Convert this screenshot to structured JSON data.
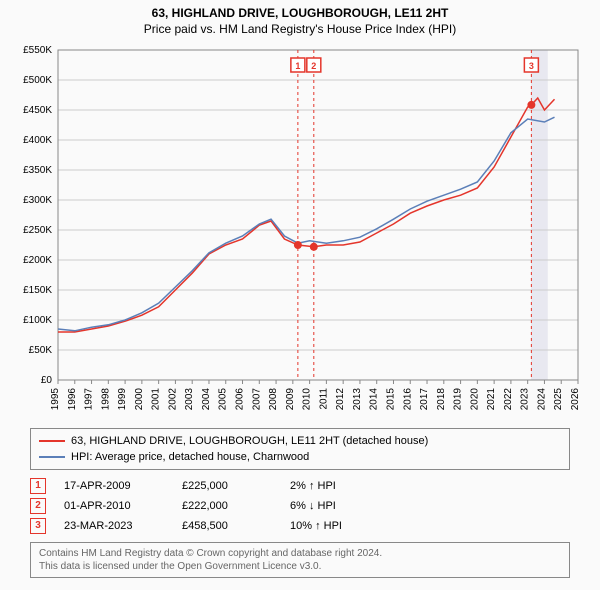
{
  "title": "63, HIGHLAND DRIVE, LOUGHBOROUGH, LE11 2HT",
  "subtitle": "Price paid vs. HM Land Registry's House Price Index (HPI)",
  "chart": {
    "type": "line",
    "background_color": "#fafafa",
    "plot_background": "#fafafa",
    "grid_color": "#cccccc",
    "axis_color": "#888888",
    "highlight_band_color": "#e8e8f0",
    "highlight_band_x": [
      2023.2,
      2024.2
    ],
    "xlim": [
      1995,
      2026
    ],
    "xtick_step": 1,
    "xtick_labels": [
      "1995",
      "1996",
      "1997",
      "1998",
      "1999",
      "2000",
      "2001",
      "2002",
      "2003",
      "2004",
      "2005",
      "2006",
      "2007",
      "2008",
      "2009",
      "2010",
      "2011",
      "2012",
      "2013",
      "2014",
      "2015",
      "2016",
      "2017",
      "2018",
      "2019",
      "2020",
      "2021",
      "2022",
      "2023",
      "2024",
      "2025",
      "2026"
    ],
    "xtick_rotation": -90,
    "xtick_fontsize": 10,
    "ylim": [
      0,
      550000
    ],
    "ytick_step": 50000,
    "ytick_labels": [
      "£0",
      "£50K",
      "£100K",
      "£150K",
      "£200K",
      "£250K",
      "£300K",
      "£350K",
      "£400K",
      "£450K",
      "£500K",
      "£550K"
    ],
    "ytick_fontsize": 10,
    "series": [
      {
        "name": "property",
        "label": "63, HIGHLAND DRIVE, LOUGHBOROUGH, LE11 2HT (detached house)",
        "color": "#e4352b",
        "line_width": 1.5,
        "data": [
          [
            1995,
            80000
          ],
          [
            1996,
            80000
          ],
          [
            1997,
            85000
          ],
          [
            1998,
            90000
          ],
          [
            1999,
            98000
          ],
          [
            2000,
            108000
          ],
          [
            2001,
            122000
          ],
          [
            2002,
            150000
          ],
          [
            2003,
            178000
          ],
          [
            2004,
            210000
          ],
          [
            2005,
            225000
          ],
          [
            2006,
            235000
          ],
          [
            2007,
            258000
          ],
          [
            2007.7,
            265000
          ],
          [
            2008.5,
            235000
          ],
          [
            2009.3,
            225000
          ],
          [
            2010.25,
            222000
          ],
          [
            2011,
            225000
          ],
          [
            2012,
            225000
          ],
          [
            2013,
            230000
          ],
          [
            2014,
            245000
          ],
          [
            2015,
            260000
          ],
          [
            2016,
            278000
          ],
          [
            2017,
            290000
          ],
          [
            2018,
            300000
          ],
          [
            2019,
            308000
          ],
          [
            2020,
            320000
          ],
          [
            2021,
            355000
          ],
          [
            2022,
            405000
          ],
          [
            2023,
            455000
          ],
          [
            2023.22,
            458500
          ],
          [
            2023.6,
            470000
          ],
          [
            2024,
            450000
          ],
          [
            2024.6,
            468000
          ]
        ]
      },
      {
        "name": "hpi",
        "label": "HPI: Average price, detached house, Charnwood",
        "color": "#5b7fb8",
        "line_width": 1.5,
        "data": [
          [
            1995,
            85000
          ],
          [
            1996,
            82000
          ],
          [
            1997,
            88000
          ],
          [
            1998,
            92000
          ],
          [
            1999,
            100000
          ],
          [
            2000,
            112000
          ],
          [
            2001,
            128000
          ],
          [
            2002,
            155000
          ],
          [
            2003,
            182000
          ],
          [
            2004,
            212000
          ],
          [
            2005,
            228000
          ],
          [
            2006,
            240000
          ],
          [
            2007,
            260000
          ],
          [
            2007.7,
            268000
          ],
          [
            2008.5,
            240000
          ],
          [
            2009.3,
            228000
          ],
          [
            2010,
            232000
          ],
          [
            2011,
            228000
          ],
          [
            2012,
            232000
          ],
          [
            2013,
            238000
          ],
          [
            2014,
            252000
          ],
          [
            2015,
            268000
          ],
          [
            2016,
            285000
          ],
          [
            2017,
            298000
          ],
          [
            2018,
            308000
          ],
          [
            2019,
            318000
          ],
          [
            2020,
            330000
          ],
          [
            2021,
            365000
          ],
          [
            2022,
            412000
          ],
          [
            2023,
            435000
          ],
          [
            2024,
            430000
          ],
          [
            2024.6,
            438000
          ]
        ]
      }
    ],
    "event_markers": [
      {
        "id": "1",
        "x": 2009.3,
        "y": 225000,
        "line_dash": "3,3",
        "line_color": "#e4352b"
      },
      {
        "id": "2",
        "x": 2010.25,
        "y": 222000,
        "line_dash": "3,3",
        "line_color": "#e4352b"
      },
      {
        "id": "3",
        "x": 2023.22,
        "y": 458500,
        "line_dash": "3,3",
        "line_color": "#e4352b"
      }
    ],
    "marker_style": {
      "shape": "circle",
      "fill": "#e4352b",
      "radius": 4
    }
  },
  "legend": {
    "border_color": "#888888",
    "items": [
      {
        "color": "#e4352b",
        "label": "63, HIGHLAND DRIVE, LOUGHBOROUGH, LE11 2HT (detached house)"
      },
      {
        "color": "#5b7fb8",
        "label": "HPI: Average price, detached house, Charnwood"
      }
    ]
  },
  "events_table": {
    "rows": [
      {
        "id": "1",
        "date": "17-APR-2009",
        "price": "£225,000",
        "delta": "2% ↑ HPI"
      },
      {
        "id": "2",
        "date": "01-APR-2010",
        "price": "£222,000",
        "delta": "6% ↓ HPI"
      },
      {
        "id": "3",
        "date": "23-MAR-2023",
        "price": "£458,500",
        "delta": "10% ↑ HPI"
      }
    ],
    "marker_border_color": "#e4352b",
    "marker_text_color": "#e4352b"
  },
  "attribution": {
    "line1": "Contains HM Land Registry data © Crown copyright and database right 2024.",
    "line2": "This data is licensed under the Open Government Licence v3.0.",
    "border_color": "#888888",
    "text_color": "#666666"
  }
}
